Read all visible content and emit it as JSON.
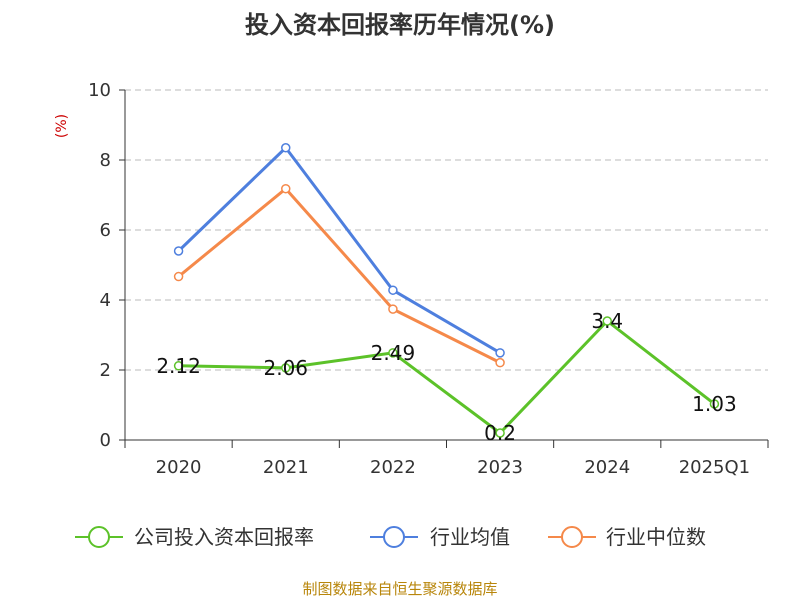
{
  "chart_data": {
    "type": "line",
    "title": "投入资本回报率历年情况(%)",
    "ylabel": "(%)",
    "categories": [
      "2020",
      "2021",
      "2022",
      "2023",
      "2024",
      "2025Q1"
    ],
    "ylim": [
      0,
      10
    ],
    "yticks": [
      0,
      2,
      4,
      6,
      8,
      10
    ],
    "grid": true,
    "legend_position": "bottom",
    "series": [
      {
        "name": "公司投入资本回报率",
        "color": "#5cc229",
        "values": [
          2.12,
          2.06,
          2.49,
          0.2,
          3.4,
          1.03
        ],
        "show_labels": true
      },
      {
        "name": "行业均值",
        "color": "#4e7fde",
        "values": [
          5.4,
          8.35,
          4.28,
          2.49,
          null,
          null
        ],
        "show_labels": false
      },
      {
        "name": "行业中位数",
        "color": "#f5894a",
        "values": [
          4.67,
          7.18,
          3.74,
          2.21,
          null,
          null
        ],
        "show_labels": false
      }
    ],
    "data_labels": [
      "2.12",
      "2.06",
      "2.49",
      "0.2",
      "3.4",
      "1.03"
    ],
    "source": "制图数据来自恒生聚源数据库"
  }
}
